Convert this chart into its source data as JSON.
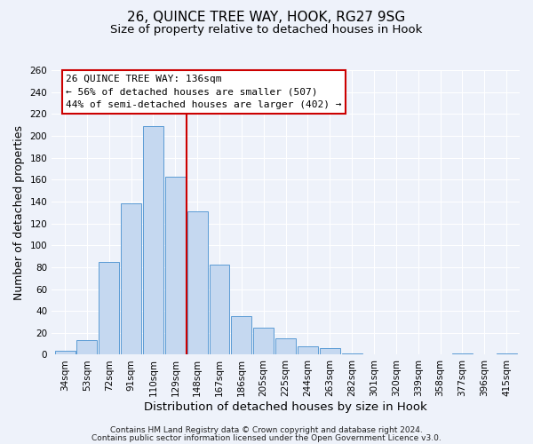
{
  "title": "26, QUINCE TREE WAY, HOOK, RG27 9SG",
  "subtitle": "Size of property relative to detached houses in Hook",
  "xlabel": "Distribution of detached houses by size in Hook",
  "ylabel": "Number of detached properties",
  "categories": [
    "34sqm",
    "53sqm",
    "72sqm",
    "91sqm",
    "110sqm",
    "129sqm",
    "148sqm",
    "167sqm",
    "186sqm",
    "205sqm",
    "225sqm",
    "244sqm",
    "263sqm",
    "282sqm",
    "301sqm",
    "320sqm",
    "339sqm",
    "358sqm",
    "377sqm",
    "396sqm",
    "415sqm"
  ],
  "values": [
    4,
    13,
    85,
    138,
    209,
    163,
    131,
    82,
    35,
    25,
    15,
    8,
    6,
    1,
    0,
    0,
    0,
    0,
    1,
    0,
    1
  ],
  "bar_color": "#c5d8f0",
  "bar_edge_color": "#5b9bd5",
  "vline_x": 5.5,
  "vline_color": "#cc0000",
  "annotation_line1": "26 QUINCE TREE WAY: 136sqm",
  "annotation_line2": "← 56% of detached houses are smaller (507)",
  "annotation_line3": "44% of semi-detached houses are larger (402) →",
  "annotation_box_facecolor": "#ffffff",
  "annotation_box_edgecolor": "#cc0000",
  "ylim": [
    0,
    260
  ],
  "yticks": [
    0,
    20,
    40,
    60,
    80,
    100,
    120,
    140,
    160,
    180,
    200,
    220,
    240,
    260
  ],
  "footer_line1": "Contains HM Land Registry data © Crown copyright and database right 2024.",
  "footer_line2": "Contains public sector information licensed under the Open Government Licence v3.0.",
  "bg_color": "#eef2fa",
  "grid_color": "#ffffff",
  "title_fontsize": 11,
  "subtitle_fontsize": 9.5,
  "xlabel_fontsize": 9.5,
  "ylabel_fontsize": 9,
  "tick_fontsize": 7.5,
  "annot_fontsize": 8,
  "footer_fontsize": 6.5
}
